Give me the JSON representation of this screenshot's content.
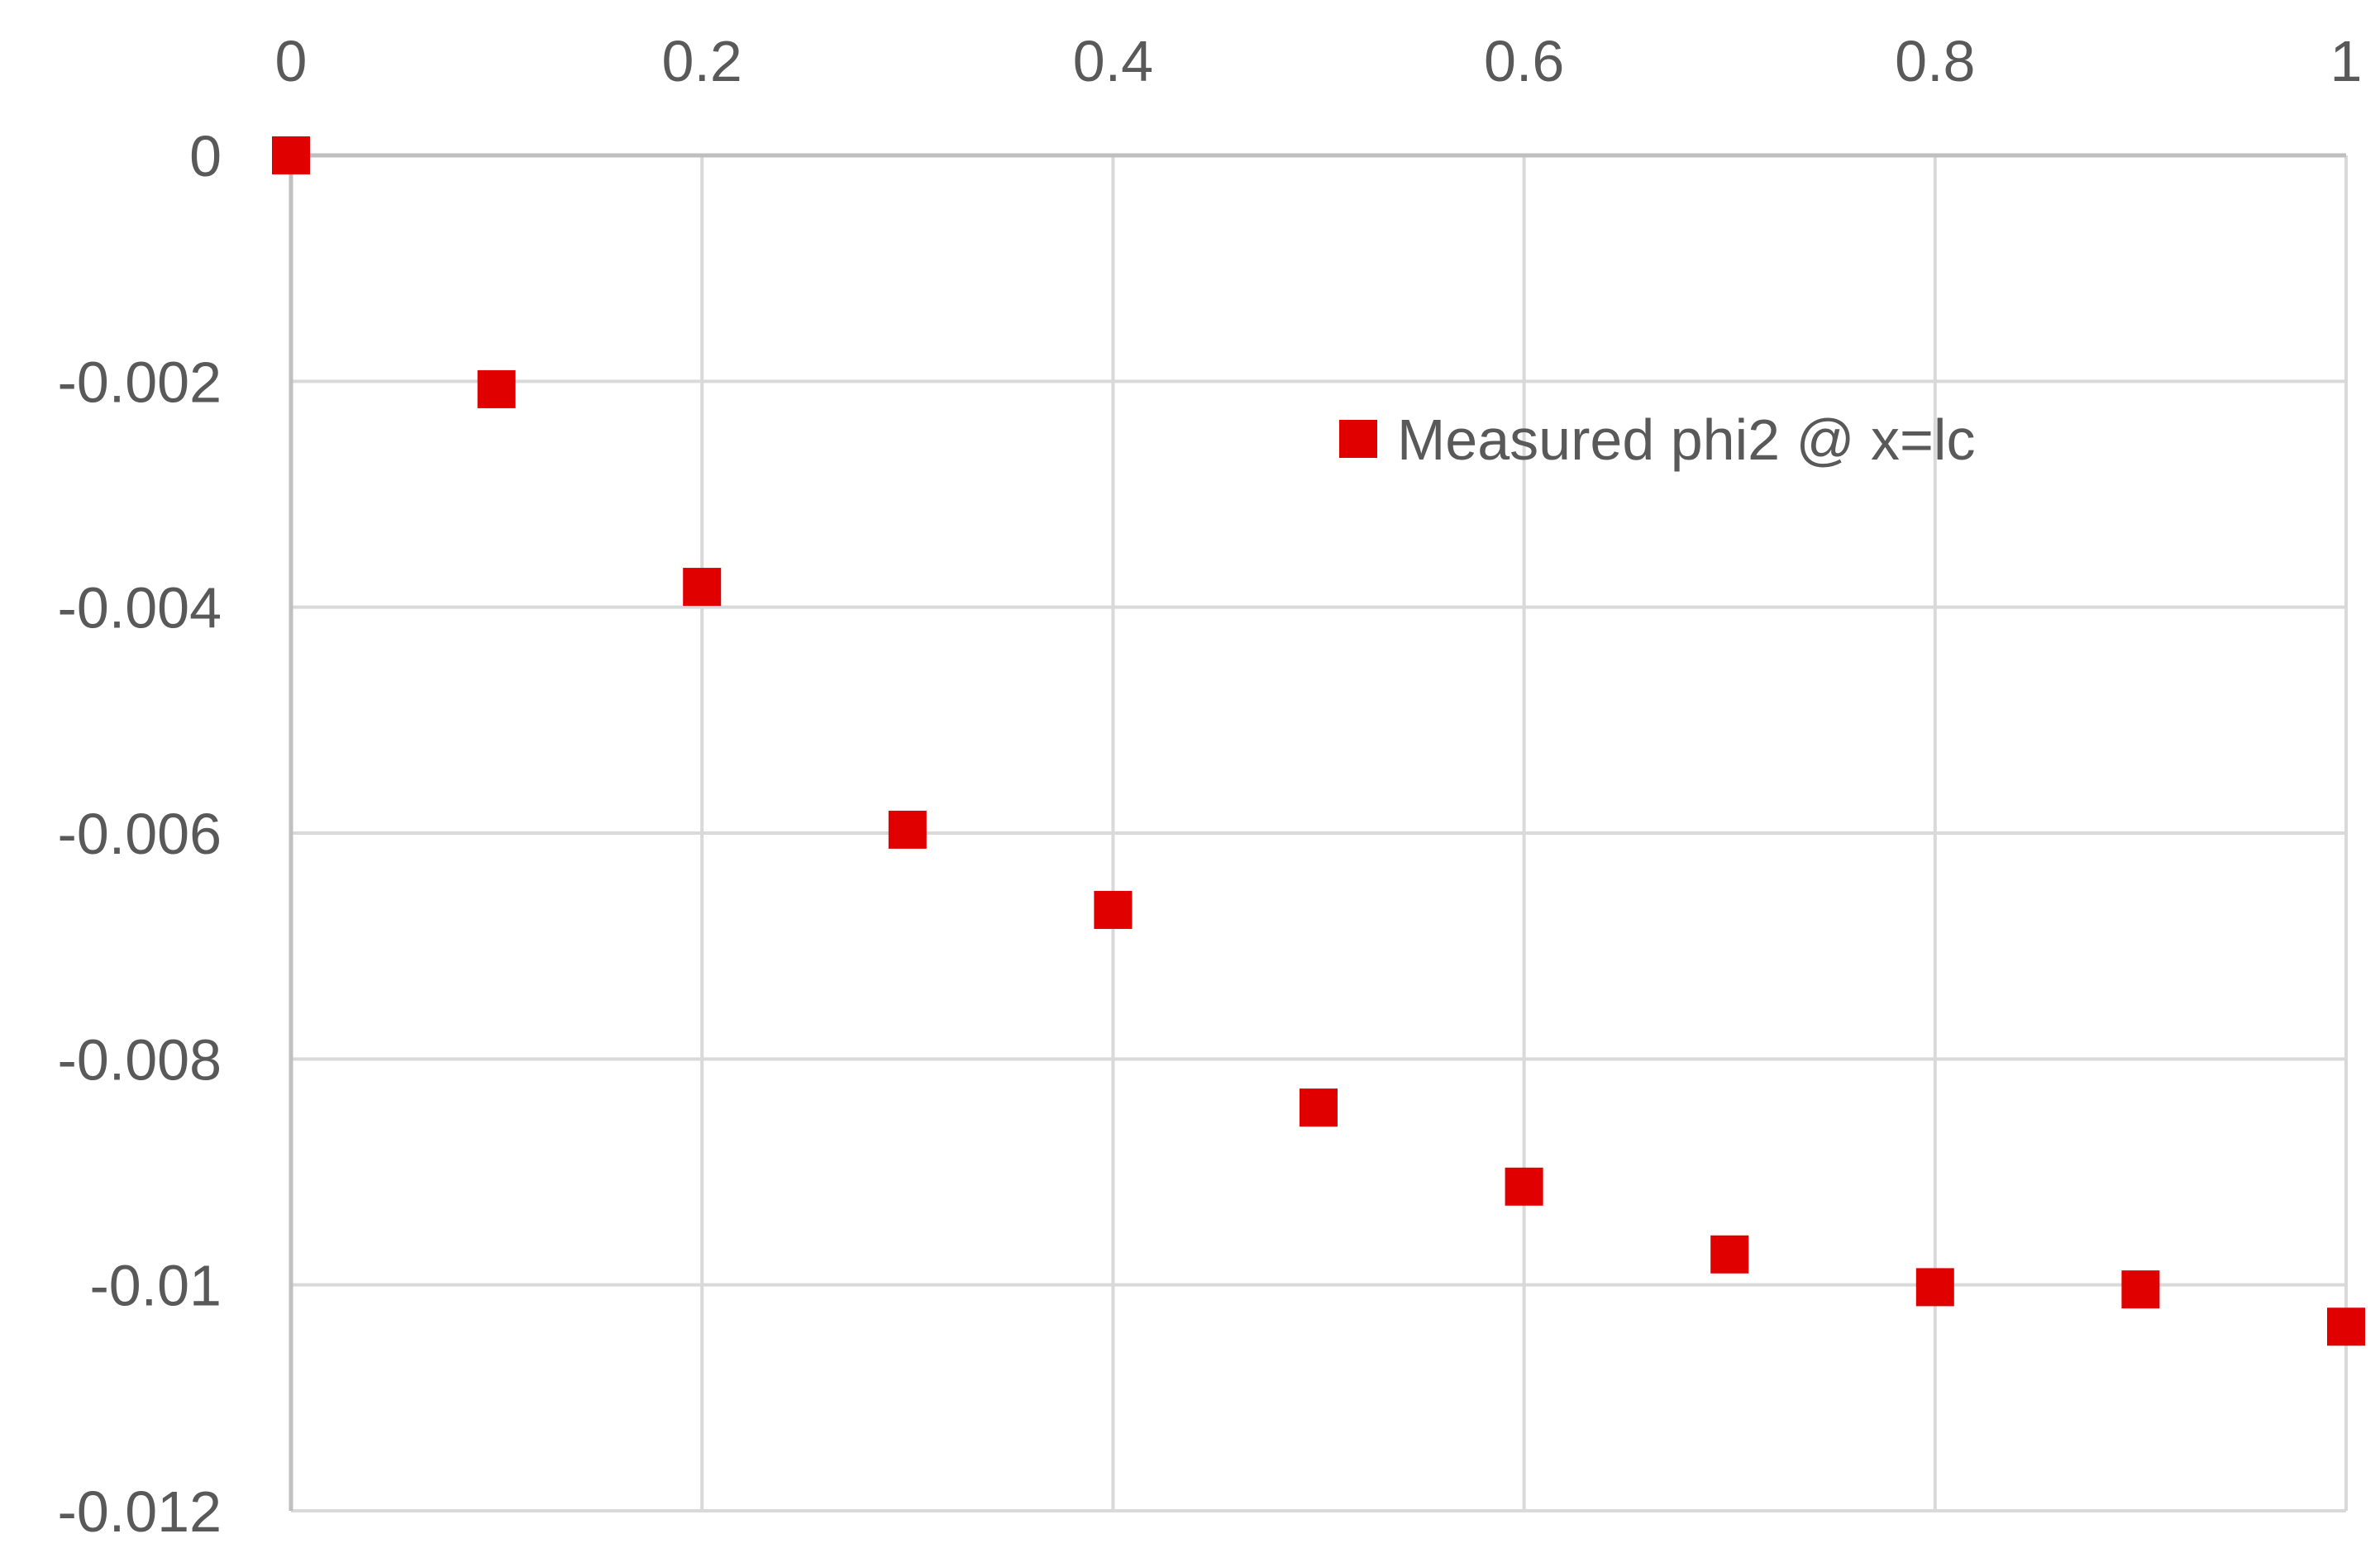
{
  "chart_data": {
    "type": "scatter",
    "title": "",
    "xlabel": "",
    "ylabel": "",
    "xlim": [
      0,
      1
    ],
    "ylim": [
      -0.012,
      0
    ],
    "x_ticks": [
      "0",
      "0.2",
      "0.4",
      "0.6",
      "0.8",
      "1"
    ],
    "y_ticks": [
      "0",
      "-0.002",
      "-0.004",
      "-0.006",
      "-0.008",
      "-0.01",
      "-0.012"
    ],
    "x_axis_position": "top",
    "grid": true,
    "legend_position": "upper-middle",
    "series": [
      {
        "name": "Measured phi2 @ x=lc",
        "color": "#e00000",
        "marker": "square",
        "x": [
          0,
          0.1,
          0.2,
          0.3,
          0.4,
          0.5,
          0.6,
          0.7,
          0.8,
          0.9,
          1.0
        ],
        "y": [
          0,
          -0.00207,
          -0.00382,
          -0.00597,
          -0.00668,
          -0.00843,
          -0.00913,
          -0.00973,
          -0.01002,
          -0.01004,
          -0.01037
        ]
      }
    ]
  }
}
